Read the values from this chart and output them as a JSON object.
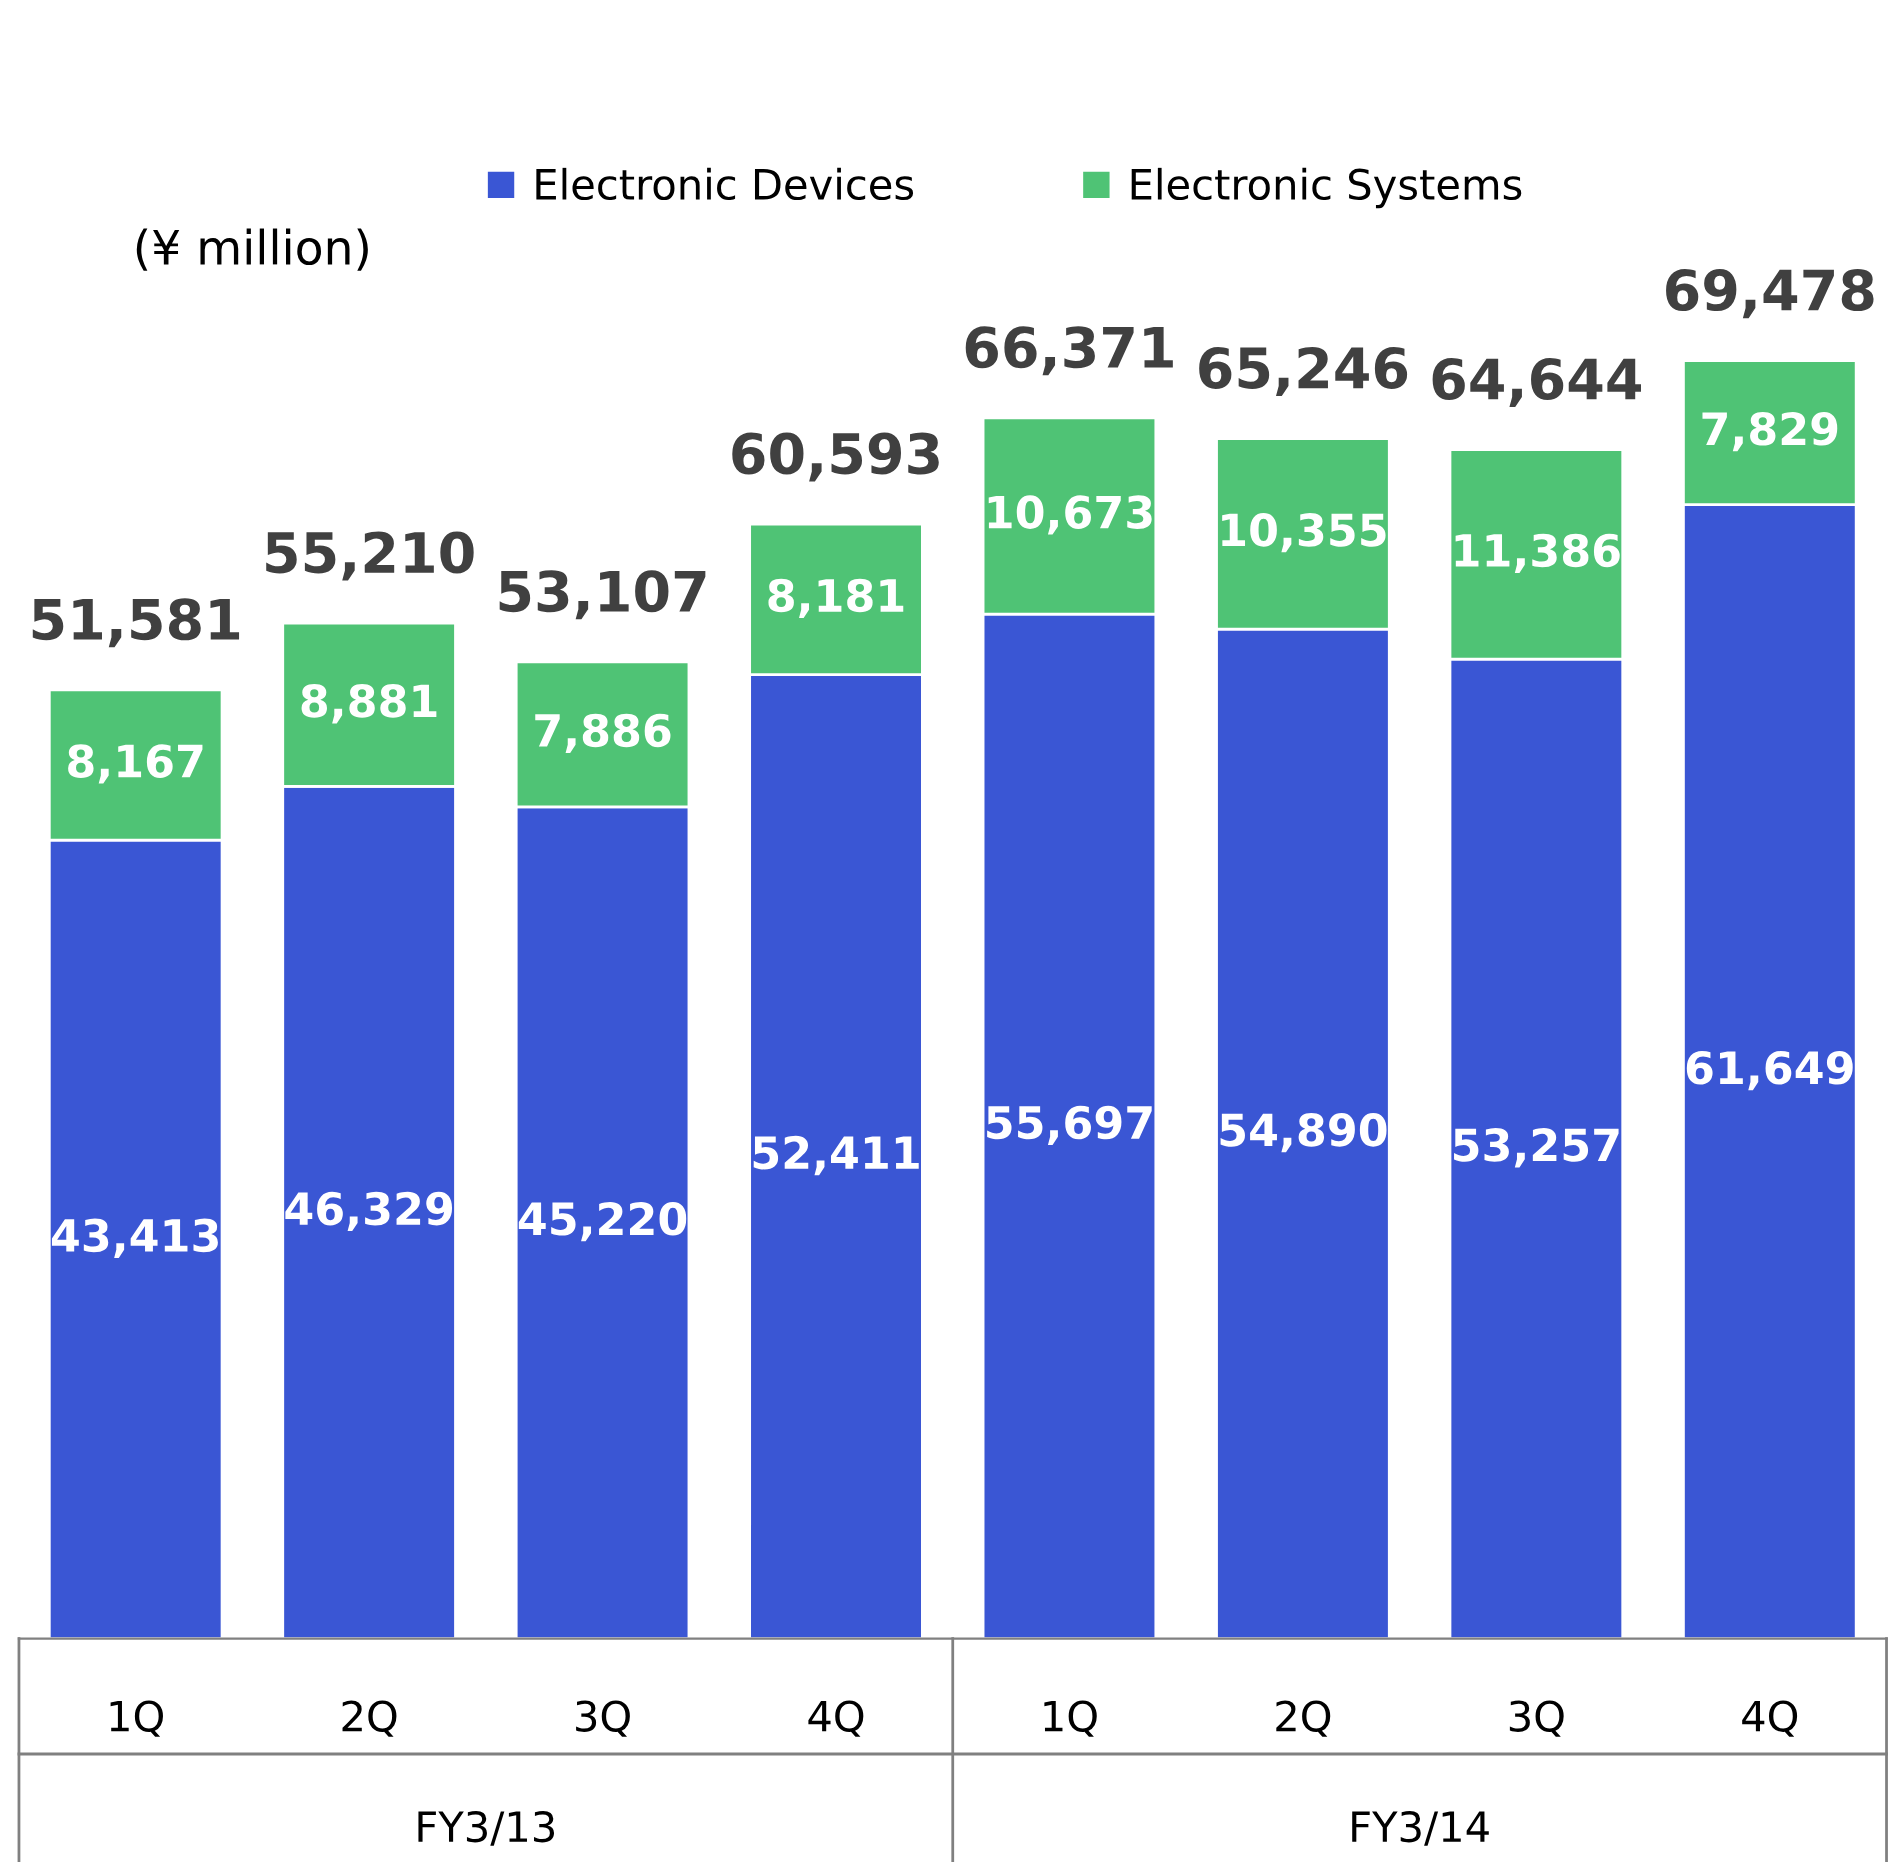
{
  "chart_data": {
    "type": "bar",
    "stacked": true,
    "ylabel": "(¥ million)",
    "legend": "top",
    "categories": [
      "1Q",
      "2Q",
      "3Q",
      "4Q",
      "1Q",
      "2Q",
      "3Q",
      "4Q"
    ],
    "series": [
      {
        "name": "Electronic Devices",
        "color": "#3a56d4",
        "values": [
          43413,
          46329,
          45220,
          52411,
          55697,
          54890,
          53257,
          61649
        ],
        "value_labels": [
          "43,413",
          "46,329",
          "45,220",
          "52,411",
          "55,697",
          "54,890",
          "53,257",
          "61,649"
        ]
      },
      {
        "name": "Electronic Systems",
        "color": "#4fc375",
        "values": [
          8167,
          8881,
          7886,
          8181,
          10673,
          10355,
          11386,
          7829
        ],
        "value_labels": [
          "8,167",
          "8,881",
          "7,886",
          "8,181",
          "10,673",
          "10,355",
          "11,386",
          "7,829"
        ]
      }
    ],
    "totals": [
      "51,581",
      "55,210",
      "53,107",
      "60,593",
      "66,371",
      "65,246",
      "64,644",
      "69,478"
    ],
    "annotations": [
      "FY3/13",
      "FY3/14"
    ]
  }
}
